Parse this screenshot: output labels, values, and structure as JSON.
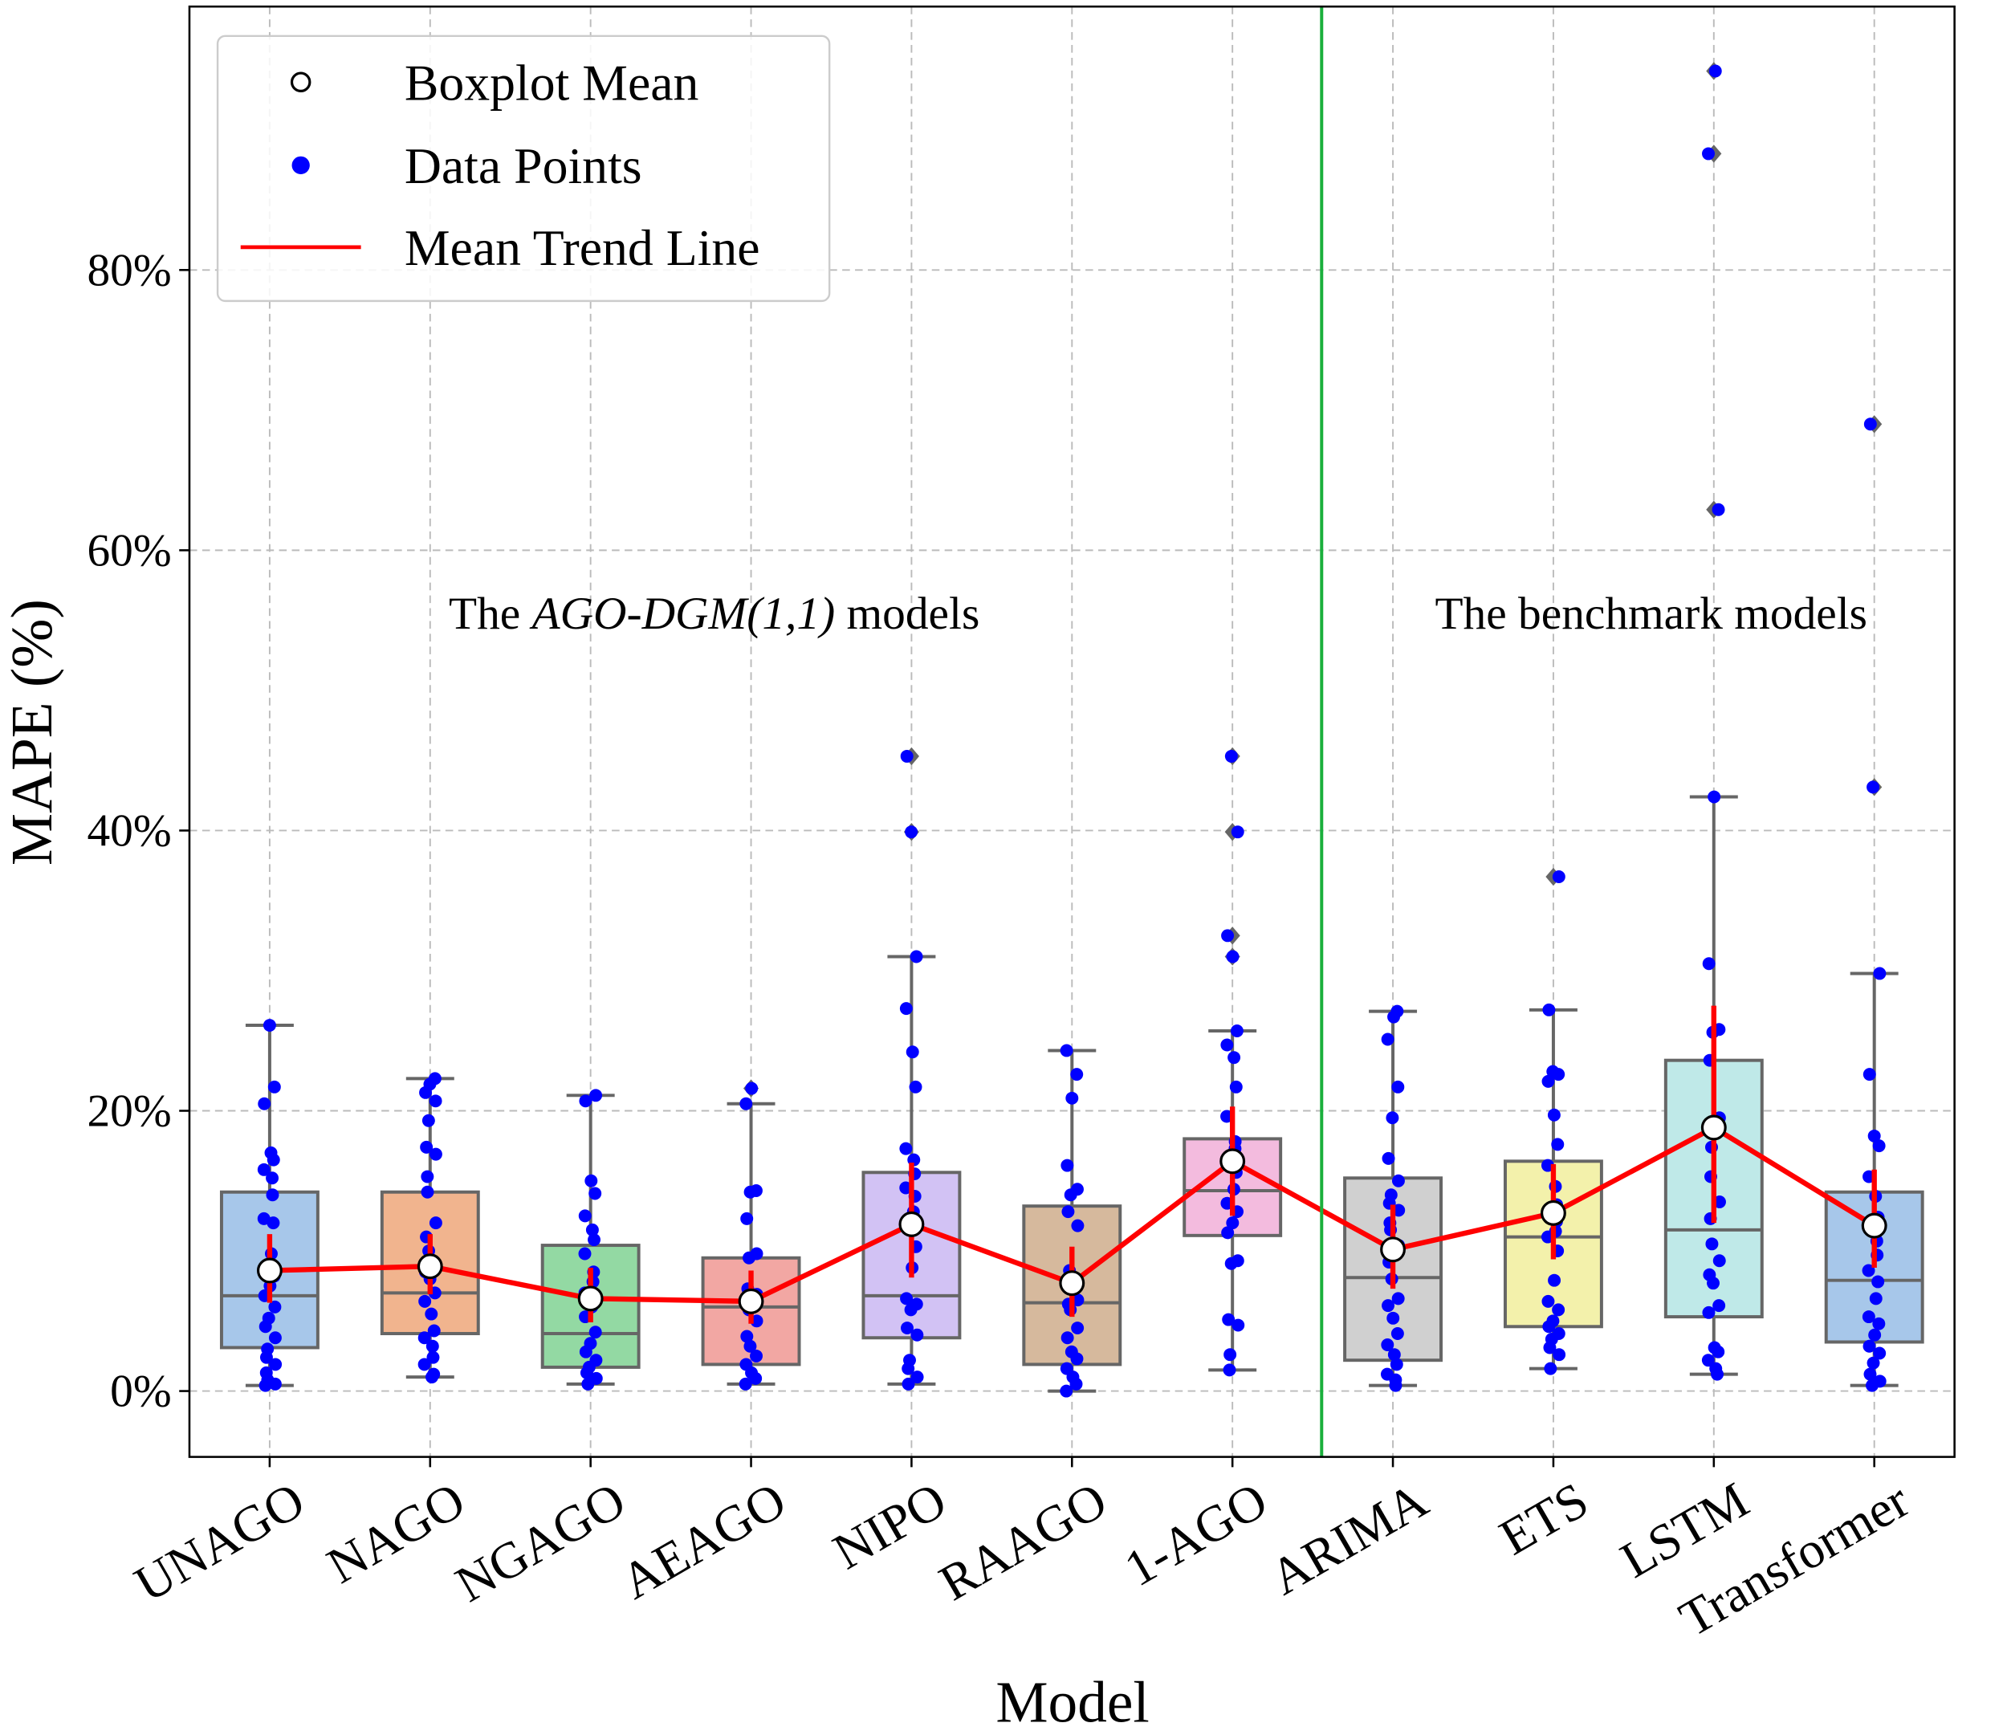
{
  "chart_data": {
    "type": "box",
    "xlabel": "Model",
    "ylabel": "MAPE (%)",
    "ylim": [
      -4.7,
      98.8
    ],
    "yticks": [
      0,
      20,
      40,
      60,
      80
    ],
    "ytick_labels": [
      "0%",
      "20%",
      "40%",
      "60%",
      "80%"
    ],
    "grid": true,
    "legend": {
      "placement": "top-left",
      "entries": [
        "Boxplot Mean",
        "Data Points",
        "Mean Trend Line"
      ]
    },
    "annotations": {
      "left_prefix": "The ",
      "left_italic": "AGO-DGM(1,1)",
      "left_suffix": " models",
      "right": "The benchmark models"
    },
    "divider_after_index": 6,
    "colors": {
      "points": "#0000ff",
      "trend": "#ff0000",
      "divider": "#1aaf3c",
      "outlier": "#666666"
    },
    "categories": [
      "UNAGO",
      "NAGO",
      "NGAGO",
      "AEAGO",
      "NIPO",
      "RAAGO",
      "1-AGO",
      "ARIMA",
      "ETS",
      "LSTM",
      "Transformer"
    ],
    "boxes": [
      {
        "q1": 3.1,
        "median": 6.8,
        "q3": 14.2,
        "whislo": 0.4,
        "whishi": 26.1,
        "mean": 8.6,
        "ci": [
          6.3,
          11.2
        ],
        "outliers": [],
        "color": "#a7c7ea"
      },
      {
        "q1": 4.1,
        "median": 7.0,
        "q3": 14.2,
        "whislo": 1.0,
        "whishi": 22.3,
        "mean": 8.9,
        "ci": [
          6.9,
          11.2
        ],
        "outliers": [],
        "color": "#f1b48e"
      },
      {
        "q1": 1.7,
        "median": 4.1,
        "q3": 10.4,
        "whislo": 0.5,
        "whishi": 21.1,
        "mean": 6.6,
        "ci": [
          4.9,
          8.8
        ],
        "outliers": [],
        "color": "#93d9a3"
      },
      {
        "q1": 1.9,
        "median": 6.0,
        "q3": 9.5,
        "whislo": 0.5,
        "whishi": 20.5,
        "mean": 6.4,
        "ci": [
          4.8,
          8.6
        ],
        "outliers": [
          21.6
        ],
        "color": "#f2a7a3"
      },
      {
        "q1": 3.8,
        "median": 6.8,
        "q3": 15.6,
        "whislo": 0.5,
        "whishi": 31.0,
        "mean": 11.9,
        "ci": [
          8.1,
          16.3
        ],
        "outliers": [
          45.3,
          39.9
        ],
        "color": "#d2c2f4"
      },
      {
        "q1": 1.9,
        "median": 6.3,
        "q3": 13.2,
        "whislo": 0.0,
        "whishi": 24.3,
        "mean": 7.7,
        "ci": [
          5.3,
          10.3
        ],
        "outliers": [],
        "color": "#d6b99d"
      },
      {
        "q1": 11.1,
        "median": 14.3,
        "q3": 18.0,
        "whislo": 1.5,
        "whishi": 25.7,
        "mean": 16.4,
        "ci": [
          12.5,
          20.3
        ],
        "outliers": [
          45.3,
          39.9,
          32.5,
          31.0
        ],
        "color": "#f3bbde"
      },
      {
        "q1": 2.2,
        "median": 8.1,
        "q3": 15.2,
        "whislo": 0.4,
        "whishi": 27.1,
        "mean": 10.1,
        "ci": [
          7.3,
          13.3
        ],
        "outliers": [],
        "color": "#d0d0d0"
      },
      {
        "q1": 4.6,
        "median": 11.0,
        "q3": 16.4,
        "whislo": 1.6,
        "whishi": 27.2,
        "mean": 12.7,
        "ci": [
          9.4,
          16.2
        ],
        "outliers": [
          36.7
        ],
        "color": "#f3f1ab"
      },
      {
        "q1": 5.3,
        "median": 11.5,
        "q3": 23.6,
        "whislo": 1.2,
        "whishi": 42.4,
        "mean": 18.8,
        "ci": [
          12.0,
          27.5
        ],
        "outliers": [
          94.2,
          88.3,
          62.9
        ],
        "color": "#bfe9e8"
      },
      {
        "q1": 3.5,
        "median": 7.9,
        "q3": 14.2,
        "whislo": 0.4,
        "whishi": 29.8,
        "mean": 11.8,
        "ci": [
          8.8,
          15.8
        ],
        "outliers": [
          69.0,
          43.1
        ],
        "color": "#a7c7ea"
      }
    ],
    "points": [
      [
        26.1,
        21.7,
        20.5,
        17.0,
        16.5,
        15.8,
        15.2,
        14.0,
        12.3,
        12.0,
        9.8,
        8.7,
        8.2,
        7.5,
        6.8,
        6.0,
        5.2,
        4.6,
        3.8,
        3.0,
        2.4,
        1.9,
        1.3,
        0.8,
        0.5,
        0.4
      ],
      [
        22.3,
        21.9,
        21.3,
        20.7,
        19.3,
        17.4,
        16.9,
        15.3,
        14.2,
        12.0,
        11.0,
        10.0,
        8.9,
        8.5,
        8.0,
        7.0,
        6.4,
        5.5,
        4.3,
        3.8,
        3.2,
        2.4,
        1.9,
        1.2,
        1.0
      ],
      [
        21.1,
        20.7,
        15.0,
        14.1,
        12.5,
        11.5,
        10.8,
        9.8,
        8.5,
        7.8,
        7.0,
        6.6,
        6.0,
        5.3,
        4.2,
        3.4,
        2.8,
        2.2,
        1.7,
        1.3,
        0.9,
        0.5
      ],
      [
        21.6,
        20.5,
        14.3,
        14.2,
        12.3,
        9.8,
        9.5,
        7.3,
        6.9,
        6.2,
        5.8,
        5.0,
        3.9,
        3.2,
        2.5,
        1.9,
        1.3,
        0.9,
        0.5
      ],
      [
        45.3,
        39.9,
        31.0,
        27.3,
        24.2,
        21.7,
        17.3,
        16.5,
        15.5,
        14.5,
        13.9,
        12.8,
        11.8,
        10.3,
        8.8,
        6.6,
        6.2,
        5.8,
        4.5,
        4.0,
        2.2,
        1.6,
        1.0,
        0.5
      ],
      [
        24.3,
        22.6,
        20.9,
        16.1,
        14.4,
        14.0,
        12.8,
        11.8,
        8.6,
        7.7,
        6.5,
        6.2,
        5.8,
        4.5,
        3.8,
        2.8,
        2.3,
        1.6,
        1.0,
        0.5,
        0.0
      ],
      [
        45.3,
        39.9,
        32.5,
        31.0,
        25.7,
        24.7,
        23.8,
        21.7,
        19.6,
        17.8,
        17.3,
        16.5,
        15.6,
        14.4,
        13.4,
        12.8,
        12.0,
        11.3,
        9.3,
        9.1,
        5.1,
        4.7,
        2.6,
        1.5
      ],
      [
        27.1,
        26.7,
        25.1,
        21.7,
        19.5,
        16.6,
        15.0,
        14.0,
        13.4,
        12.9,
        12.0,
        11.5,
        10.4,
        9.2,
        8.0,
        6.6,
        6.1,
        5.2,
        4.1,
        3.3,
        2.6,
        1.9,
        1.2,
        0.8,
        0.4
      ],
      [
        36.7,
        27.2,
        22.8,
        22.6,
        22.1,
        19.7,
        17.6,
        16.1,
        14.6,
        13.3,
        12.7,
        12.1,
        11.4,
        11.0,
        10.0,
        7.9,
        6.4,
        5.8,
        5.0,
        4.6,
        4.1,
        3.7,
        3.1,
        2.6,
        1.6
      ],
      [
        94.2,
        88.3,
        62.9,
        42.4,
        30.5,
        25.8,
        25.6,
        23.6,
        19.5,
        17.4,
        15.3,
        13.5,
        12.3,
        10.5,
        9.3,
        8.3,
        7.7,
        6.1,
        5.6,
        3.1,
        2.8,
        2.2,
        1.6,
        1.2
      ],
      [
        69.0,
        43.1,
        29.8,
        22.6,
        18.2,
        17.5,
        15.3,
        13.9,
        12.4,
        11.8,
        10.7,
        9.7,
        8.6,
        7.8,
        6.6,
        5.3,
        4.8,
        4.0,
        3.2,
        2.7,
        2.0,
        1.2,
        0.7,
        0.4
      ]
    ]
  }
}
